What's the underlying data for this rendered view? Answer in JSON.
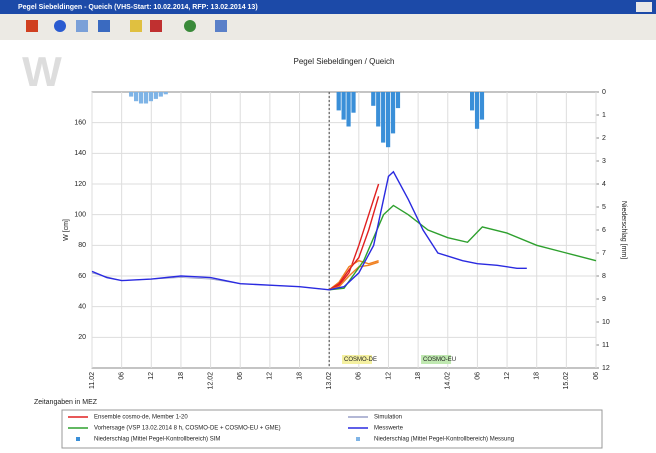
{
  "window": {
    "title": "Pegel Siebeldingen - Queich (VHS-Start: 10.02.2014, RFP: 13.02.2014 13)",
    "logo": "W"
  },
  "chart_data": {
    "type": "line",
    "title": "Pegel Siebeldingen / Queich",
    "y_label": "W [cm]",
    "y2_label": "Niederschlag [mm]",
    "xlim": [
      0,
      102
    ],
    "xticks": [
      {
        "value": 0,
        "label": "11.02"
      },
      {
        "value": 6,
        "label": "06"
      },
      {
        "value": 12,
        "label": "12"
      },
      {
        "value": 18,
        "label": "18"
      },
      {
        "value": 24,
        "label": "12.02"
      },
      {
        "value": 30,
        "label": "06"
      },
      {
        "value": 36,
        "label": "12"
      },
      {
        "value": 42,
        "label": "18"
      },
      {
        "value": 48,
        "label": "13.02"
      },
      {
        "value": 54,
        "label": "06"
      },
      {
        "value": 60,
        "label": "12"
      },
      {
        "value": 66,
        "label": "18"
      },
      {
        "value": 72,
        "label": "14.02"
      },
      {
        "value": 78,
        "label": "06"
      },
      {
        "value": 84,
        "label": "12"
      },
      {
        "value": 90,
        "label": "18"
      },
      {
        "value": 96,
        "label": "15.02"
      },
      {
        "value": 102,
        "label": "06"
      }
    ],
    "ylim": [
      0,
      180
    ],
    "yticks": [
      20,
      40,
      60,
      80,
      100,
      120,
      140,
      160
    ],
    "y2lim": [
      0,
      12
    ],
    "y2ticks": [
      0,
      1,
      2,
      3,
      4,
      5,
      6,
      7,
      8,
      9,
      10,
      11,
      12
    ],
    "y2_inverted": true,
    "grid": true,
    "forecast_start": 48,
    "annotations": [
      {
        "text": "COSMO-DE",
        "x": 51,
        "color": "#f4f0a0"
      },
      {
        "text": "COSMO-EU",
        "x": 67,
        "color": "#bfe8b0"
      }
    ],
    "note": "Zeitangaben in MEZ",
    "series": [
      {
        "name": "Ensemble cosmo-de, Member 1-20",
        "type": "ensemble",
        "color": "#e02020",
        "x": [
          48,
          50,
          52,
          54,
          56,
          58
        ],
        "members": [
          [
            51,
            54,
            62,
            80,
            100,
            120
          ],
          [
            51,
            56,
            66,
            70,
            68,
            70
          ],
          [
            51,
            55,
            64,
            72,
            90,
            112
          ],
          [
            51,
            53,
            60,
            66,
            67,
            69
          ]
        ]
      },
      {
        "name": "Vorhersage (VSP 13.02.2014 8 h, COSMO-DE + COSMO-EU + GME)",
        "type": "line",
        "color": "#2ea02e",
        "x": [
          48,
          51,
          55,
          59,
          61,
          64,
          68,
          72,
          76,
          79,
          84,
          90,
          96,
          102
        ],
        "values": [
          51,
          52,
          70,
          100,
          106,
          100,
          90,
          85,
          82,
          92,
          88,
          80,
          75,
          70
        ]
      },
      {
        "name": "Niederschlag (Mittel Pegel-Kontrollbereich) SIM",
        "type": "bar",
        "axis": "y2",
        "color": "#3a8fd8",
        "x": [
          50,
          51,
          52,
          53,
          57,
          58,
          59,
          60,
          61,
          62,
          77,
          78,
          79
        ],
        "values": [
          0.8,
          1.2,
          1.5,
          0.9,
          0.6,
          1.5,
          2.2,
          2.4,
          1.8,
          0.7,
          0.8,
          1.6,
          1.2
        ]
      },
      {
        "name": "Simulation",
        "type": "line",
        "color": "#9aa0c8",
        "x": [
          0,
          6,
          12,
          18,
          24,
          30,
          36,
          42,
          48
        ],
        "values": [
          62,
          57,
          58,
          59,
          58,
          55,
          54,
          53,
          51
        ]
      },
      {
        "name": "Messwerte",
        "type": "line",
        "color": "#2a2ae0",
        "x": [
          0,
          3,
          6,
          12,
          18,
          24,
          30,
          36,
          42,
          48,
          51,
          54,
          57,
          60,
          61,
          64,
          67,
          70,
          75,
          78,
          82,
          86,
          88
        ],
        "values": [
          63,
          59,
          57,
          58,
          60,
          59,
          55,
          54,
          53,
          51,
          53,
          62,
          80,
          125,
          128,
          110,
          90,
          75,
          70,
          68,
          67,
          65,
          65
        ]
      },
      {
        "name": "Niederschlag (Mittel Pegel-Kontrollbereich) Messung",
        "type": "bar",
        "axis": "y2",
        "color": "#7fb4e6",
        "x": [
          8,
          9,
          10,
          11,
          12,
          13,
          14,
          15
        ],
        "values": [
          0.2,
          0.4,
          0.5,
          0.5,
          0.4,
          0.3,
          0.2,
          0.1
        ]
      }
    ]
  }
}
